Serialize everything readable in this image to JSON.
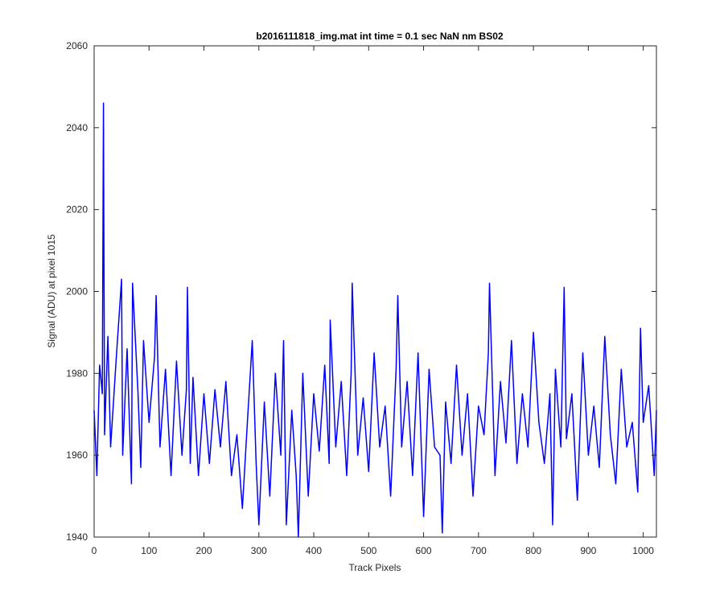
{
  "chart_data": {
    "type": "line",
    "title": "b2016111818_img.mat int time = 0.1 sec  NaN nm BS02",
    "xlabel": "Track Pixels",
    "ylabel": "Signal (ADU) at pixel 1015",
    "xlim": [
      0,
      1024
    ],
    "ylim": [
      1940,
      2060
    ],
    "xticks": [
      0,
      100,
      200,
      300,
      400,
      500,
      600,
      700,
      800,
      900,
      1000
    ],
    "yticks": [
      1940,
      1960,
      1980,
      2000,
      2020,
      2040,
      2060
    ],
    "grid": false,
    "line_color": "#0000ff",
    "series": [
      {
        "x": [
          0,
          5,
          10,
          15,
          17,
          19,
          25,
          30,
          40,
          50,
          52,
          60,
          68,
          70,
          80,
          85,
          90,
          100,
          110,
          113,
          120,
          130,
          140,
          150,
          160,
          168,
          170,
          175,
          180,
          190,
          200,
          210,
          220,
          230,
          240,
          250,
          260,
          270,
          280,
          288,
          295,
          300,
          310,
          320,
          330,
          340,
          345,
          350,
          360,
          368,
          372,
          380,
          390,
          400,
          410,
          420,
          428,
          430,
          440,
          450,
          460,
          468,
          470,
          480,
          490,
          500,
          510,
          520,
          530,
          540,
          550,
          553,
          560,
          570,
          580,
          590,
          600,
          610,
          620,
          630,
          634,
          640,
          650,
          660,
          670,
          680,
          690,
          700,
          710,
          718,
          720,
          730,
          740,
          750,
          760,
          770,
          780,
          790,
          800,
          810,
          820,
          830,
          835,
          840,
          850,
          856,
          860,
          870,
          880,
          890,
          900,
          910,
          920,
          930,
          940,
          950,
          960,
          970,
          980,
          990,
          995,
          1000,
          1010,
          1020,
          1024
        ],
        "y": [
          1971,
          1955,
          1982,
          1975,
          2046,
          1965,
          1989,
          1962,
          1983,
          2003,
          1960,
          1986,
          1953,
          2002,
          1975,
          1957,
          1988,
          1968,
          1984,
          1999,
          1962,
          1981,
          1955,
          1983,
          1960,
          1976,
          2001,
          1958,
          1979,
          1955,
          1975,
          1958,
          1976,
          1962,
          1978,
          1955,
          1965,
          1947,
          1970,
          1988,
          1958,
          1943,
          1973,
          1950,
          1980,
          1960,
          1988,
          1943,
          1971,
          1955,
          1940,
          1980,
          1950,
          1975,
          1961,
          1982,
          1958,
          1993,
          1962,
          1978,
          1955,
          1980,
          2002,
          1960,
          1974,
          1956,
          1985,
          1962,
          1972,
          1950,
          1981,
          1999,
          1962,
          1978,
          1955,
          1985,
          1945,
          1981,
          1962,
          1960,
          1941,
          1973,
          1958,
          1982,
          1960,
          1975,
          1950,
          1972,
          1965,
          1985,
          2002,
          1955,
          1978,
          1963,
          1988,
          1958,
          1975,
          1962,
          1990,
          1968,
          1958,
          1975,
          1943,
          1981,
          1962,
          2001,
          1964,
          1975,
          1949,
          1985,
          1960,
          1972,
          1957,
          1989,
          1965,
          1953,
          1981,
          1962,
          1968,
          1951,
          1991,
          1968,
          1977,
          1955,
          1971
        ]
      }
    ]
  }
}
